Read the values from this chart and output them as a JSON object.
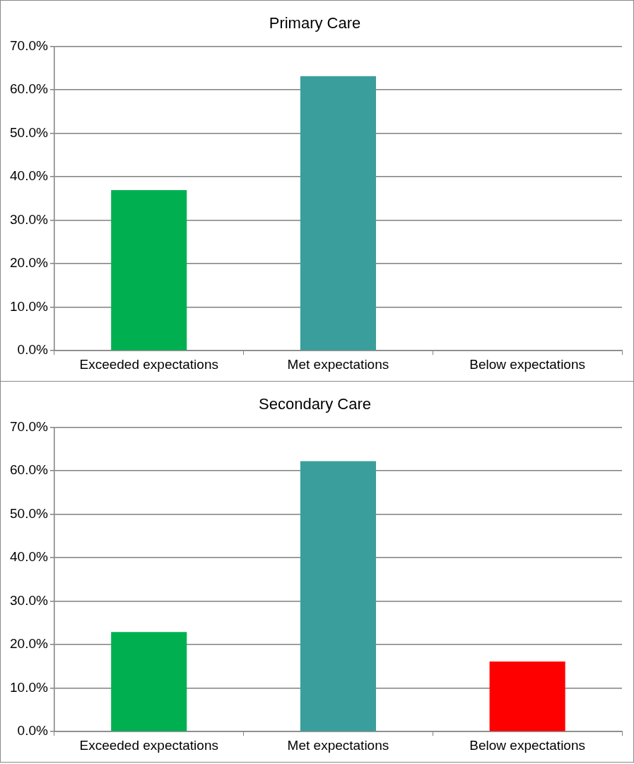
{
  "chart_data": [
    {
      "type": "bar",
      "title": "Primary Care",
      "categories": [
        "Exceeded expectations",
        "Met expectations",
        "Below expectations"
      ],
      "values": [
        36.9,
        63.1,
        0
      ],
      "colors": [
        "#00b050",
        "#3a9f9c",
        "#ff0000"
      ],
      "ylim": [
        0,
        70
      ],
      "yticks": [
        {
          "value": 0,
          "label": "0.0%"
        },
        {
          "value": 10,
          "label": "10.0%"
        },
        {
          "value": 20,
          "label": "20.0%"
        },
        {
          "value": 30,
          "label": "30.0%"
        },
        {
          "value": 40,
          "label": "40.0%"
        },
        {
          "value": 50,
          "label": "50.0%"
        },
        {
          "value": 60,
          "label": "60.0%"
        },
        {
          "value": 70,
          "label": "70.0%"
        }
      ],
      "grid": "y",
      "legend": false
    },
    {
      "type": "bar",
      "title": "Secondary Care",
      "categories": [
        "Exceeded expectations",
        "Met expectations",
        "Below expectations"
      ],
      "values": [
        22.9,
        62.2,
        16.1
      ],
      "colors": [
        "#00b050",
        "#3a9f9c",
        "#ff0000"
      ],
      "ylim": [
        0,
        70
      ],
      "yticks": [
        {
          "value": 0,
          "label": "0.0%"
        },
        {
          "value": 10,
          "label": "10.0%"
        },
        {
          "value": 20,
          "label": "20.0%"
        },
        {
          "value": 30,
          "label": "30.0%"
        },
        {
          "value": 40,
          "label": "40.0%"
        },
        {
          "value": 50,
          "label": "50.0%"
        },
        {
          "value": 60,
          "label": "60.0%"
        },
        {
          "value": 70,
          "label": "70.0%"
        }
      ],
      "grid": "y",
      "legend": false
    }
  ]
}
